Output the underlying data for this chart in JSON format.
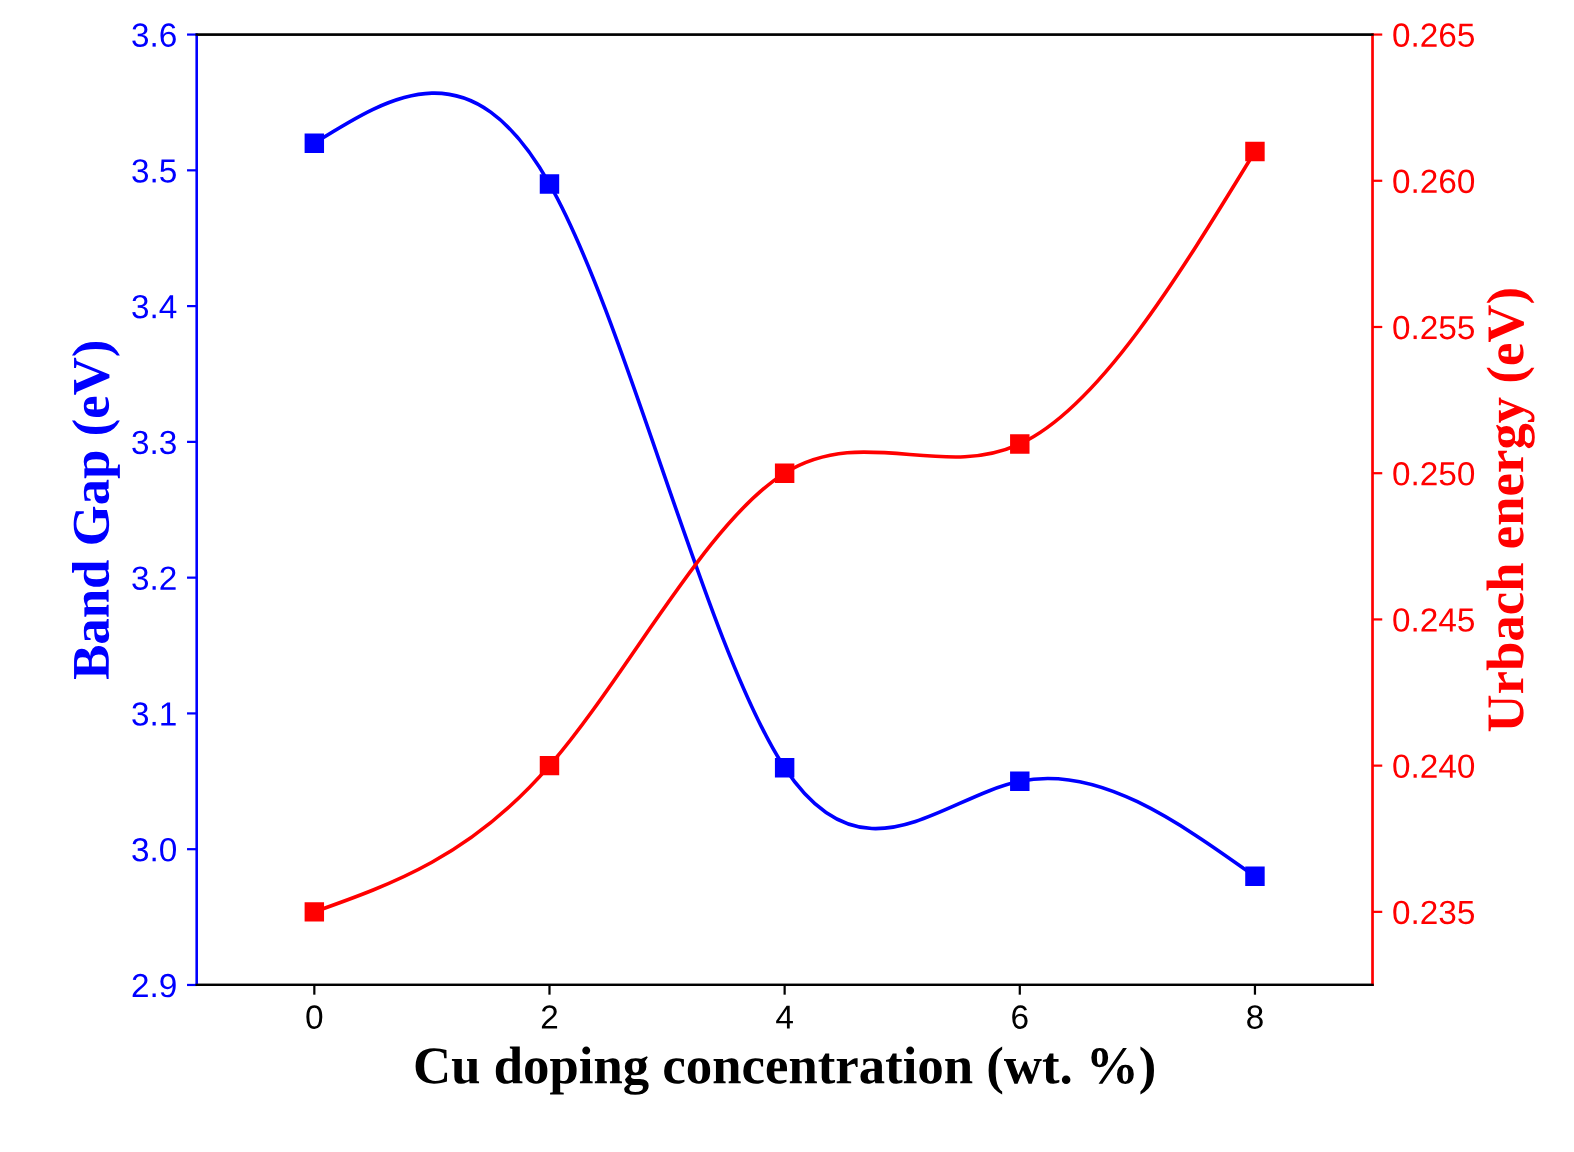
{
  "chart_data": {
    "type": "line",
    "xlabel": "Cu doping concentration (wt. %)",
    "ylabel": "Band Gap (eV)",
    "y2label": "Urbach energy (eV)",
    "x": [
      0,
      2,
      4,
      6,
      8
    ],
    "series": [
      {
        "color": "#0000ff",
        "values": [
          3.52,
          3.49,
          3.06,
          3.05,
          2.98
        ]
      },
      {
        "color": "#ff0000",
        "values": [
          0.235,
          0.24,
          0.25,
          0.251,
          0.261
        ],
        "axis": "y2"
      }
    ],
    "xlim": [
      -1,
      9
    ],
    "xticks": [
      0,
      2,
      4,
      6,
      8
    ],
    "ylim": [
      2.9,
      3.6
    ],
    "yticks": [
      2.9,
      {
        "value": 3.0,
        "label": "3.0"
      },
      3.1,
      3.2,
      3.3,
      3.4,
      3.5,
      3.6
    ],
    "y2lim": [
      0.2325,
      0.265
    ],
    "y2ticks": [
      0.235,
      {
        "value": 0.24,
        "label": "0.240"
      },
      0.245,
      {
        "value": 0.25,
        "label": "0.250"
      },
      0.255,
      {
        "value": 0.26,
        "label": "0.260"
      },
      0.265
    ],
    "marker": "square",
    "line_style": "solid",
    "grid": false,
    "legend": false
  }
}
